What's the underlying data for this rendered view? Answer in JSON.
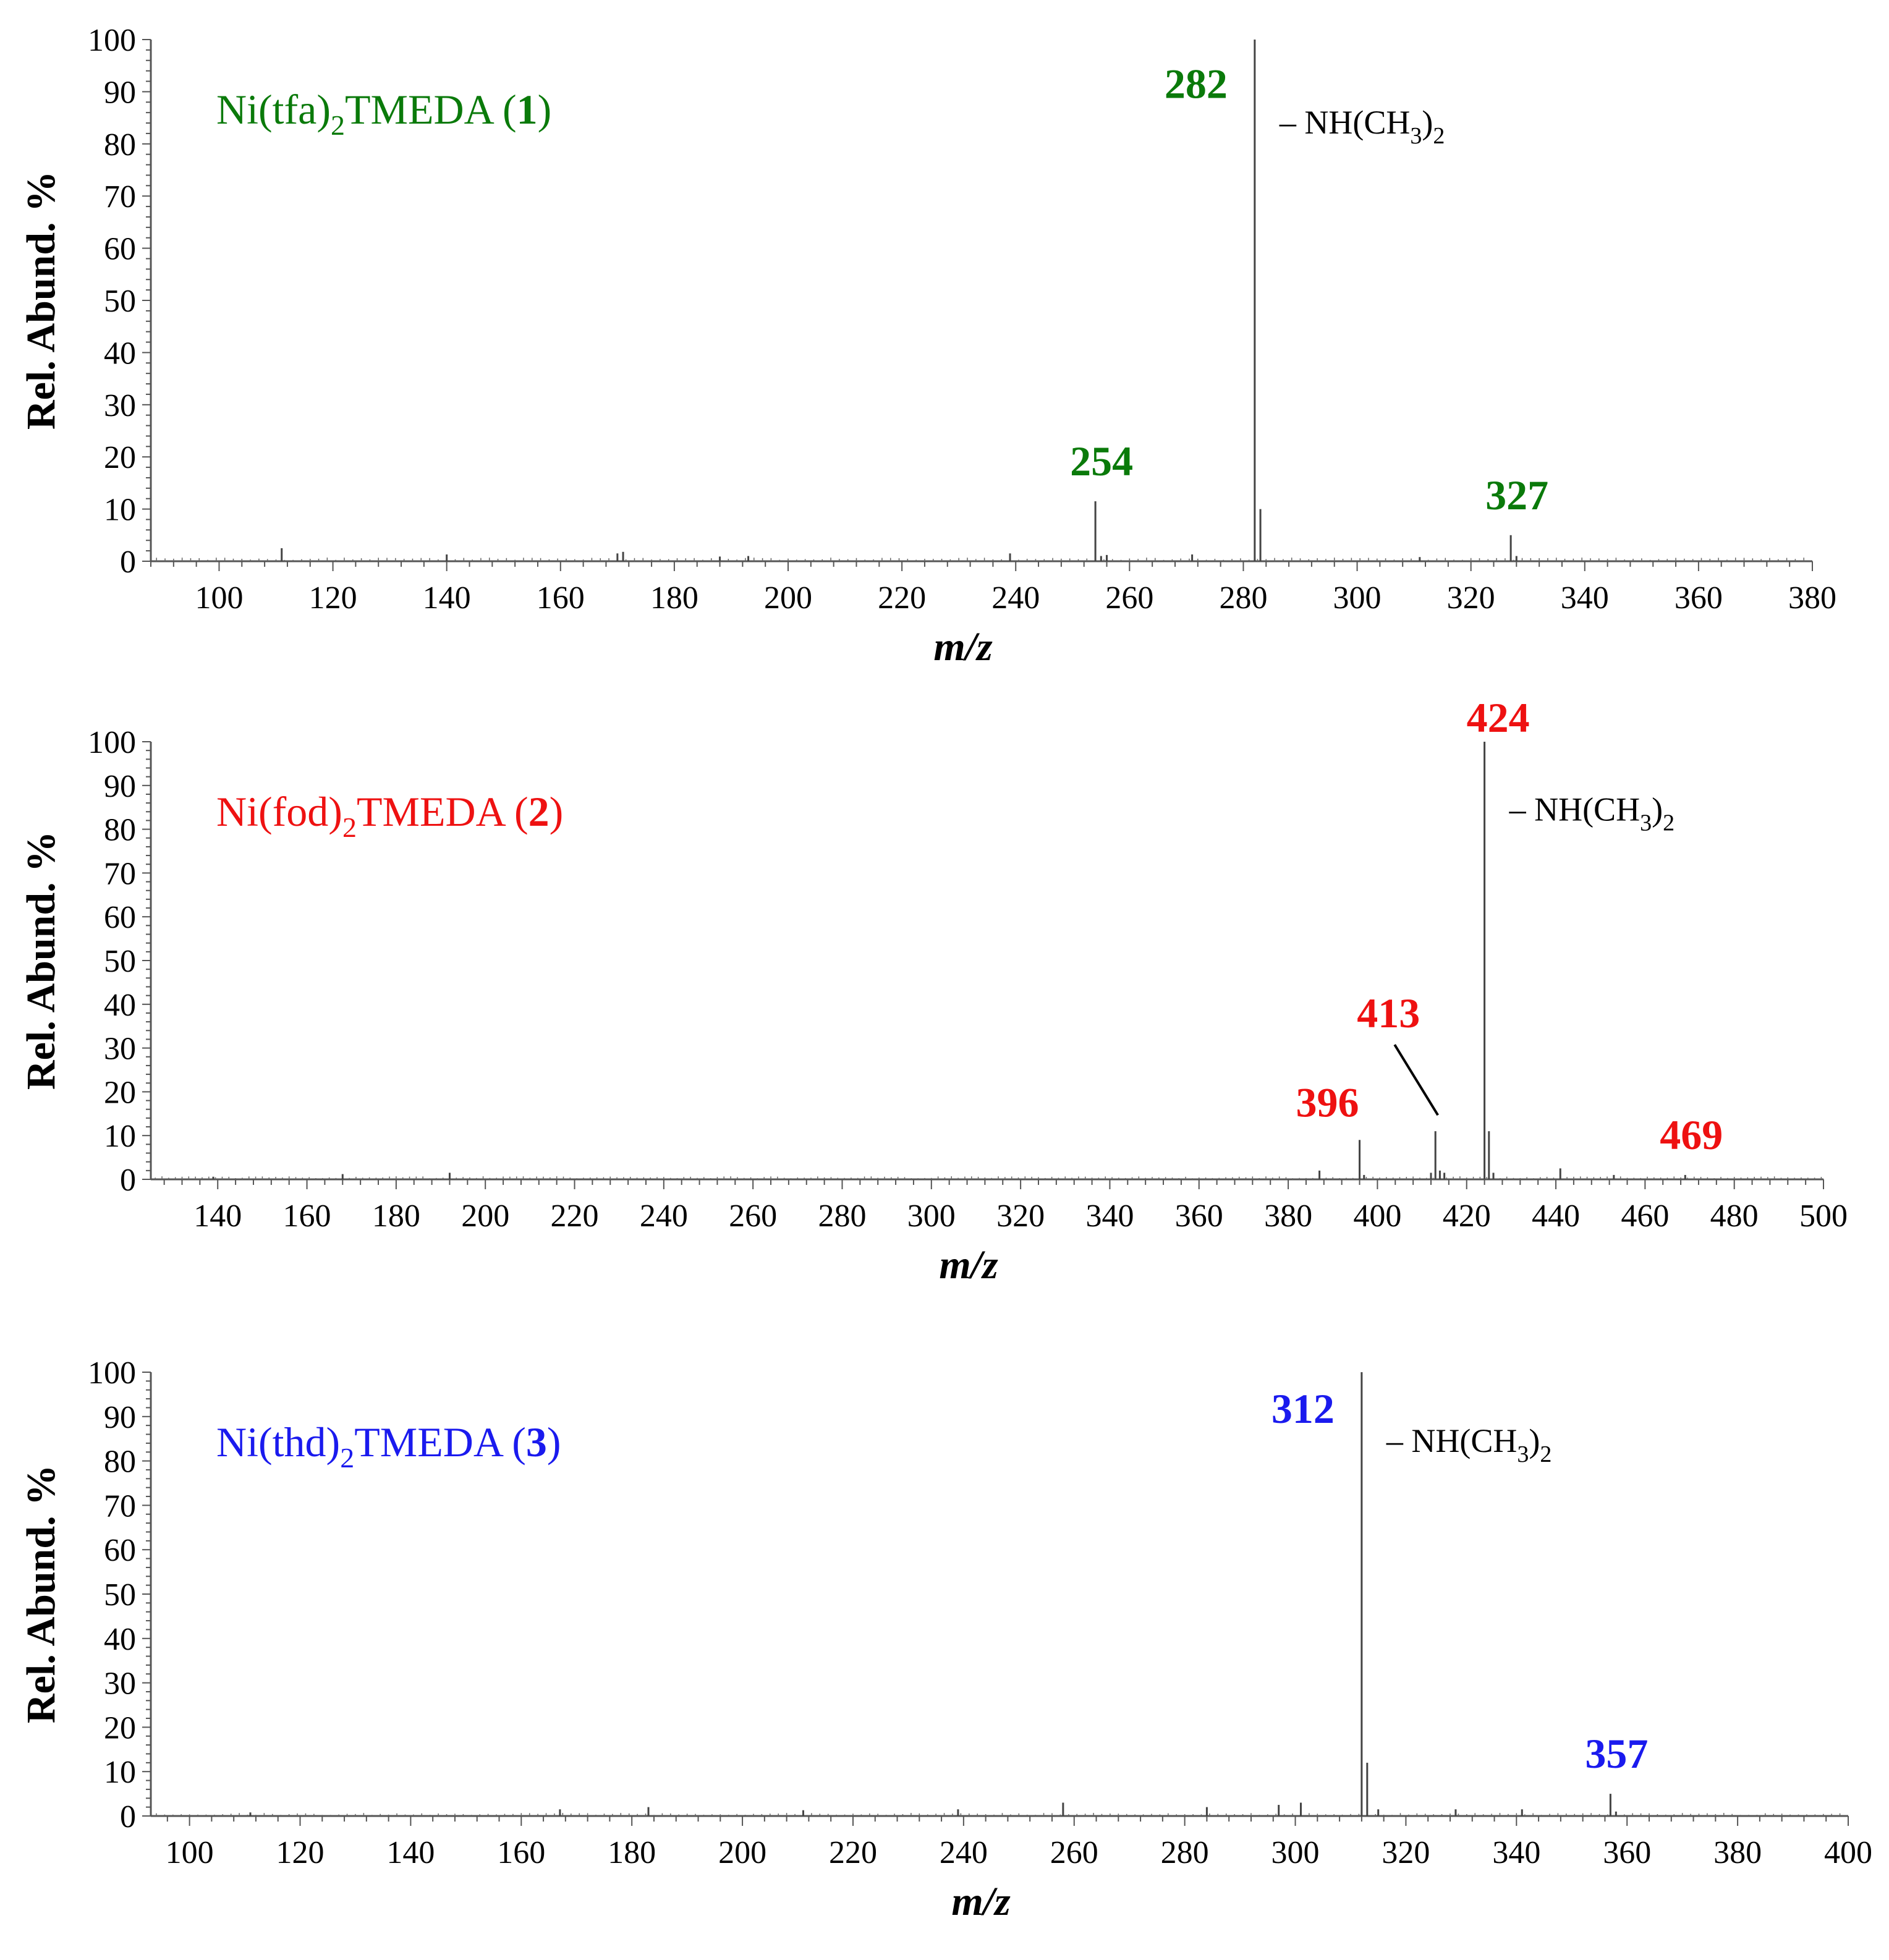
{
  "chart_data": [
    {
      "type": "bar",
      "title": "Ni(tfa)2TMEDA (1)",
      "title_parts": {
        "pre": "Ni(tfa)",
        "sub": "2",
        "post": "TMEDA (",
        "num": "1",
        "close": ")"
      },
      "color": "#0a7a0a",
      "xlabel": "m/z",
      "ylabel": "Rel. Abund. %",
      "xlim": [
        88,
        380
      ],
      "ylim": [
        0,
        100
      ],
      "xticks": [
        100,
        120,
        140,
        160,
        180,
        200,
        220,
        240,
        260,
        280,
        300,
        320,
        340,
        360,
        380
      ],
      "yticks": [
        0,
        10,
        20,
        30,
        40,
        50,
        60,
        70,
        80,
        90,
        100
      ],
      "peaks": [
        {
          "mz": 111,
          "abund": 2.5
        },
        {
          "mz": 140,
          "abund": 1.3
        },
        {
          "mz": 170,
          "abund": 1.5
        },
        {
          "mz": 171,
          "abund": 1.8
        },
        {
          "mz": 188,
          "abund": 0.9
        },
        {
          "mz": 193,
          "abund": 1.0
        },
        {
          "mz": 239,
          "abund": 1.5
        },
        {
          "mz": 254,
          "abund": 11.5
        },
        {
          "mz": 255,
          "abund": 1.0
        },
        {
          "mz": 256,
          "abund": 1.2
        },
        {
          "mz": 271,
          "abund": 1.3
        },
        {
          "mz": 282,
          "abund": 100
        },
        {
          "mz": 283,
          "abund": 10
        },
        {
          "mz": 311,
          "abund": 0.8
        },
        {
          "mz": 327,
          "abund": 5
        },
        {
          "mz": 328,
          "abund": 1.0
        }
      ],
      "labels": [
        {
          "text": "282",
          "mz": 282,
          "abund": 100,
          "pos": "left"
        },
        {
          "text": "254",
          "mz": 254,
          "abund": 11.5,
          "pos": "above"
        },
        {
          "text": "327",
          "mz": 327,
          "abund": 5,
          "pos": "above"
        }
      ],
      "loss": {
        "pre": "– NH(CH",
        "sub": "3",
        "post": ")",
        "sub2": "2",
        "mz": 282,
        "abund": 100
      }
    },
    {
      "type": "bar",
      "title": "Ni(fod)2TMEDA (2)",
      "title_parts": {
        "pre": "Ni(fod)",
        "sub": "2",
        "post": "TMEDA (",
        "num": "2",
        "close": ")"
      },
      "color": "#ee1111",
      "xlabel": "m/z",
      "ylabel": "Rel. Abund. %",
      "xlim": [
        125,
        500
      ],
      "ylim": [
        0,
        100
      ],
      "xticks": [
        140,
        160,
        180,
        200,
        220,
        240,
        260,
        280,
        300,
        320,
        340,
        360,
        380,
        400,
        420,
        440,
        460,
        480,
        500
      ],
      "yticks": [
        0,
        10,
        20,
        30,
        40,
        50,
        60,
        70,
        80,
        90,
        100
      ],
      "peaks": [
        {
          "mz": 139,
          "abund": 0.6
        },
        {
          "mz": 168,
          "abund": 1.2
        },
        {
          "mz": 192,
          "abund": 1.5
        },
        {
          "mz": 387,
          "abund": 2
        },
        {
          "mz": 396,
          "abund": 9
        },
        {
          "mz": 397,
          "abund": 1.0
        },
        {
          "mz": 412,
          "abund": 1.5
        },
        {
          "mz": 413,
          "abund": 11
        },
        {
          "mz": 414,
          "abund": 2
        },
        {
          "mz": 415,
          "abund": 1.5
        },
        {
          "mz": 424,
          "abund": 100
        },
        {
          "mz": 425,
          "abund": 11
        },
        {
          "mz": 426,
          "abund": 1.5
        },
        {
          "mz": 441,
          "abund": 2.5
        },
        {
          "mz": 453,
          "abund": 1.0
        },
        {
          "mz": 469,
          "abund": 1.0
        }
      ],
      "labels": [
        {
          "text": "424",
          "mz": 424,
          "abund": 100,
          "pos": "top"
        },
        {
          "text": "396",
          "mz": 396,
          "abund": 9,
          "pos": "left-above"
        },
        {
          "text": "413",
          "mz": 413,
          "abund": 11,
          "pos": "leader"
        },
        {
          "text": "469",
          "mz": 469,
          "abund": 1.0,
          "pos": "above"
        }
      ],
      "loss": {
        "pre": "– NH(CH",
        "sub": "3",
        "post": ")",
        "sub2": "2",
        "mz": 424,
        "abund": 100
      }
    },
    {
      "type": "bar",
      "title": "Ni(thd)2TMEDA (3)",
      "title_parts": {
        "pre": "Ni(thd)",
        "sub": "2",
        "post": "TMEDA (",
        "num": "3",
        "close": ")"
      },
      "color": "#1a1aee",
      "xlabel": "m/z",
      "ylabel": "Rel. Abund. %",
      "xlim": [
        93,
        400
      ],
      "ylim": [
        0,
        100
      ],
      "xticks": [
        100,
        120,
        140,
        160,
        180,
        200,
        220,
        240,
        260,
        280,
        300,
        320,
        340,
        360,
        380,
        400
      ],
      "yticks": [
        0,
        10,
        20,
        30,
        40,
        50,
        60,
        70,
        80,
        90,
        100
      ],
      "peaks": [
        {
          "mz": 111,
          "abund": 0.8
        },
        {
          "mz": 167,
          "abund": 1.5
        },
        {
          "mz": 183,
          "abund": 2
        },
        {
          "mz": 211,
          "abund": 1.3
        },
        {
          "mz": 239,
          "abund": 1.5
        },
        {
          "mz": 258,
          "abund": 3
        },
        {
          "mz": 284,
          "abund": 2
        },
        {
          "mz": 297,
          "abund": 2.5
        },
        {
          "mz": 301,
          "abund": 3
        },
        {
          "mz": 312,
          "abund": 100
        },
        {
          "mz": 313,
          "abund": 12
        },
        {
          "mz": 315,
          "abund": 1.5
        },
        {
          "mz": 329,
          "abund": 1.5
        },
        {
          "mz": 341,
          "abund": 1.5
        },
        {
          "mz": 357,
          "abund": 5
        },
        {
          "mz": 358,
          "abund": 1.0
        }
      ],
      "labels": [
        {
          "text": "312",
          "mz": 312,
          "abund": 100,
          "pos": "left"
        },
        {
          "text": "357",
          "mz": 357,
          "abund": 5,
          "pos": "above"
        }
      ],
      "loss": {
        "pre": "– NH(CH",
        "sub": "3",
        "post": ")",
        "sub2": "2",
        "mz": 312,
        "abund": 100
      }
    }
  ]
}
